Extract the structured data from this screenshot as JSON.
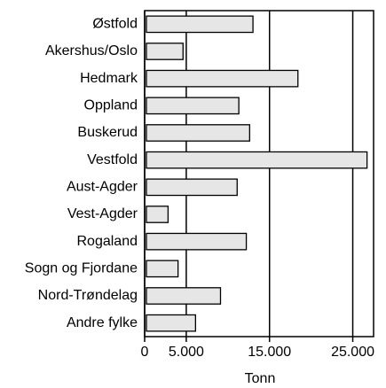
{
  "chart_data": {
    "type": "bar",
    "orientation": "horizontal",
    "categories": [
      "Østfold",
      "Akershus/Oslo",
      "Hedmark",
      "Oppland",
      "Buskerud",
      "Vestfold",
      "Aust-Agder",
      "Vest-Agder",
      "Rogaland",
      "Sogn og Fjordane",
      "Nord-Trøndelag",
      "Andre fylke"
    ],
    "values": [
      12800,
      4400,
      18200,
      11100,
      12400,
      26500,
      10900,
      2600,
      12000,
      3800,
      8900,
      5900
    ],
    "color": "#e6e6e6",
    "xlabel": "Tonn",
    "xlim": [
      0,
      27500
    ],
    "xticks": [
      0,
      {
        "value": 5000,
        "label": "5.000"
      },
      {
        "value": 15000,
        "label": "15.000"
      },
      {
        "value": 25000,
        "label": "25.000"
      }
    ],
    "grid": true
  }
}
